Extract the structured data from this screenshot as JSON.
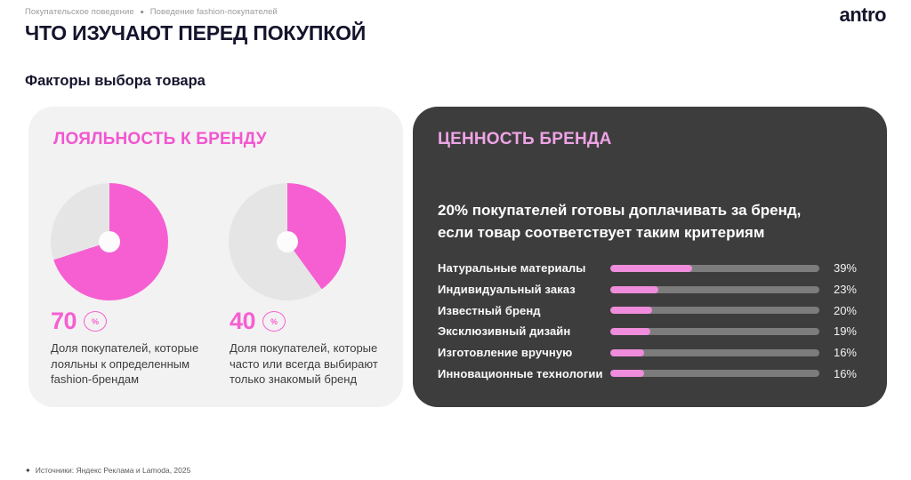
{
  "header": {
    "breadcrumb": {
      "items": [
        "Покупательское поведение",
        "Поведение fashion-покупателей"
      ],
      "separator": "✦"
    },
    "logo": "antro",
    "title": "ЧТО ИЗУЧАЮТ ПЕРЕД ПОКУПКОЙ",
    "subtitle": "Факторы выбора товара"
  },
  "loyalty_card": {
    "title": "ЛОЯЛЬНОСТЬ К БРЕНДУ",
    "stats": [
      {
        "value": "70",
        "unit": "%",
        "pct": 70,
        "description": "Доля покупателей, которые лояльны к определенным fashion-брендам"
      },
      {
        "value": "40",
        "unit": "%",
        "pct": 40,
        "description": "Доля покупателей, которые часто или всегда выбирают только знакомый бренд"
      }
    ]
  },
  "value_card": {
    "title": "ЦЕННОСТЬ БРЕНДА",
    "lead_lines": [
      "20% покупателей готовы доплачивать за бренд,",
      "если товар соответствует таким критериям"
    ],
    "bars": [
      {
        "label": "Натуральные материалы",
        "value": 39,
        "display": "39%"
      },
      {
        "label": "Индивидуальный заказ",
        "value": 23,
        "display": "23%"
      },
      {
        "label": "Известный бренд",
        "value": 20,
        "display": "20%"
      },
      {
        "label": "Эксклюзивный дизайн",
        "value": 19,
        "display": "19%"
      },
      {
        "label": "Изготовление вручную",
        "value": 16,
        "display": "16%"
      },
      {
        "label": "Инновационные технологии",
        "value": 16,
        "display": "16%"
      }
    ]
  },
  "footer": {
    "marker": "✦",
    "text": "Источники: Яндекс Реклама и Lamoda, 2025"
  },
  "colors": {
    "accent_pink": "#f65fd2",
    "bar_pink": "#ef8cdb",
    "pastel_pink_heading": "#eea4e6",
    "donut_rest_gray": "#e6e5e5",
    "bar_track_gray": "#7c7c7c",
    "dark_card_bg": "#3e3d3d",
    "light_card_bg": "#f3f2f2",
    "heading_navy": "#14142c"
  },
  "chart_data": [
    {
      "type": "pie",
      "style": "donut",
      "title": "Доля покупателей, которые лояльны к определенным fashion-брендам",
      "labels": [
        "лояльны",
        "остальные"
      ],
      "values": [
        70,
        30
      ],
      "colors": [
        "#f65fd2",
        "#e6e5e5"
      ],
      "start_angle": "top",
      "direction": "clockwise"
    },
    {
      "type": "pie",
      "style": "donut",
      "title": "Доля покупателей, которые часто или всегда выбирают только знакомый бренд",
      "labels": [
        "выбирают знакомый бренд",
        "остальные"
      ],
      "values": [
        40,
        60
      ],
      "colors": [
        "#f65fd2",
        "#e6e5e5"
      ],
      "start_angle": "top",
      "direction": "clockwise"
    },
    {
      "type": "bar",
      "orientation": "horizontal",
      "title": "20% покупателей готовы доплачивать за бренд, если товар соответствует таким критериям",
      "categories": [
        "Натуральные материалы",
        "Индивидуальный заказ",
        "Известный бренд",
        "Эксклюзивный дизайн",
        "Изготовление вручную",
        "Инновационные технологии"
      ],
      "values": [
        39,
        23,
        20,
        19,
        16,
        16
      ],
      "unit": "%",
      "xlim": [
        0,
        100
      ],
      "grid": false,
      "legend": false
    }
  ]
}
